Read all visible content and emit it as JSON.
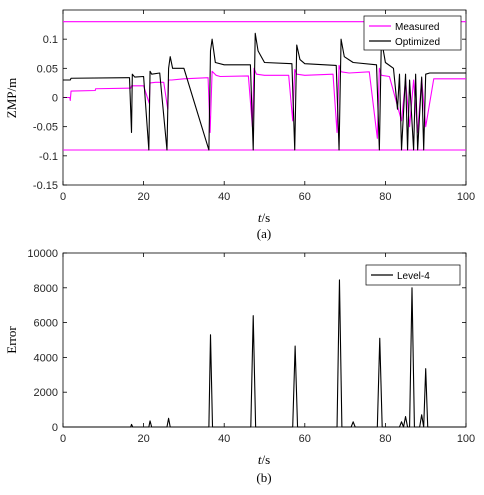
{
  "chart_data": [
    {
      "type": "line",
      "caption": "(a)",
      "xlabel_var": "t",
      "xlabel_unit": "/s",
      "ylabel": "ZMP/m",
      "xlim": [
        0,
        100
      ],
      "ylim": [
        -0.15,
        0.15
      ],
      "xticks": [
        "0",
        "20",
        "40",
        "60",
        "80",
        "100"
      ],
      "yticks": [
        "-0.15",
        "-0.1",
        "-0.05",
        "0",
        "0.05",
        "0.1"
      ],
      "ytick_values": [
        -0.15,
        -0.1,
        -0.05,
        0,
        0.05,
        0.1
      ],
      "xtick_values": [
        0,
        20,
        40,
        60,
        80,
        100
      ],
      "legend_position": "top-right",
      "limits": {
        "upper": 0.13,
        "lower": -0.09,
        "color": "#ff00ff"
      },
      "series": [
        {
          "name": "Measured",
          "color": "#ff00ff",
          "x": [
            0,
            1.7,
            1.8,
            2.0,
            8,
            8.1,
            16.8,
            17,
            20,
            21.4,
            21.6,
            23,
            25,
            26,
            26.2,
            27,
            30,
            36,
            36.5,
            37,
            38,
            39,
            46,
            47,
            47.4,
            48,
            50,
            56,
            57,
            57.5,
            58,
            60,
            67,
            68,
            68.5,
            69,
            71,
            76,
            78,
            78.5,
            79,
            81,
            84,
            85,
            86,
            87,
            88,
            89,
            90,
            92,
            100
          ],
          "y": [
            0,
            0,
            -0.005,
            0.011,
            0.012,
            0.015,
            0.016,
            0.02,
            0.02,
            -0.01,
            0.025,
            0.026,
            0.026,
            -0.02,
            0.03,
            0.03,
            0.032,
            0.034,
            -0.06,
            0.045,
            0.038,
            0.036,
            0.037,
            -0.05,
            0.05,
            0.04,
            0.038,
            0.038,
            -0.04,
            0.048,
            0.04,
            0.038,
            0.04,
            -0.06,
            0.055,
            0.044,
            0.042,
            0.044,
            -0.07,
            0.05,
            0.038,
            0.036,
            -0.04,
            0.03,
            -0.05,
            0.03,
            -0.06,
            0.032,
            -0.05,
            0.032,
            0.032
          ]
        },
        {
          "name": "Optimized",
          "color": "#000000",
          "x": [
            0,
            1.8,
            2.0,
            16.5,
            17.0,
            17.2,
            17.8,
            20,
            21.3,
            21.6,
            22,
            24,
            25.8,
            26.2,
            26.6,
            27.2,
            30,
            36.2,
            36.6,
            37,
            37.8,
            40,
            46.5,
            47.2,
            47.7,
            48.4,
            50,
            56.8,
            57.5,
            58,
            58.8,
            60,
            67.8,
            68.5,
            69,
            69.8,
            72,
            77.8,
            78.5,
            79,
            80,
            82,
            83,
            83.5,
            84,
            85,
            85.5,
            86,
            87,
            87.5,
            88,
            89,
            89.5,
            90,
            91,
            100
          ],
          "y": [
            0.03,
            0.03,
            0.033,
            0.034,
            -0.06,
            0.04,
            0.035,
            0.036,
            -0.09,
            0.045,
            0.04,
            0.042,
            -0.09,
            0.05,
            0.07,
            0.05,
            0.05,
            -0.09,
            0.08,
            0.1,
            0.06,
            0.056,
            0.056,
            -0.09,
            0.11,
            0.08,
            0.06,
            0.058,
            -0.09,
            0.09,
            0.065,
            0.058,
            0.055,
            -0.09,
            0.1,
            0.07,
            0.06,
            0.056,
            -0.09,
            0.1,
            0.06,
            0.05,
            -0.02,
            0.04,
            -0.09,
            0.04,
            -0.09,
            0.03,
            -0.09,
            0.04,
            -0.09,
            0.035,
            -0.09,
            0.04,
            0.042,
            0.042
          ]
        }
      ]
    },
    {
      "type": "line",
      "caption": "(b)",
      "xlabel_var": "t",
      "xlabel_unit": "/s",
      "ylabel": "Error",
      "xlim": [
        0,
        100
      ],
      "ylim": [
        0,
        10000
      ],
      "xticks": [
        "0",
        "20",
        "40",
        "60",
        "80",
        "100"
      ],
      "yticks": [
        "0",
        "2000",
        "4000",
        "6000",
        "8000",
        "10000"
      ],
      "ytick_values": [
        0,
        2000,
        4000,
        6000,
        8000,
        10000
      ],
      "xtick_values": [
        0,
        20,
        40,
        60,
        80,
        100
      ],
      "legend_position": "top-right",
      "series": [
        {
          "name": "Level-4",
          "color": "#000000",
          "x": [
            0,
            16.8,
            17,
            17.3,
            21.3,
            21.6,
            22,
            25.8,
            26.2,
            26.6,
            36.2,
            36.6,
            37.1,
            46.6,
            47.2,
            47.8,
            57,
            57.6,
            58.2,
            68,
            68.6,
            69.2,
            71.5,
            72,
            72.5,
            78,
            78.6,
            79.2,
            83.5,
            84,
            84.5,
            85,
            85.5,
            86,
            86.6,
            87.2,
            88.5,
            89,
            89.5,
            90,
            90.5,
            100
          ],
          "y": [
            0,
            0,
            150,
            0,
            0,
            350,
            0,
            0,
            500,
            0,
            0,
            5300,
            0,
            0,
            6400,
            0,
            0,
            4650,
            0,
            0,
            8450,
            0,
            0,
            300,
            0,
            0,
            5100,
            0,
            0,
            300,
            0,
            600,
            0,
            0,
            8000,
            0,
            0,
            700,
            0,
            3350,
            0,
            0
          ]
        }
      ]
    }
  ]
}
